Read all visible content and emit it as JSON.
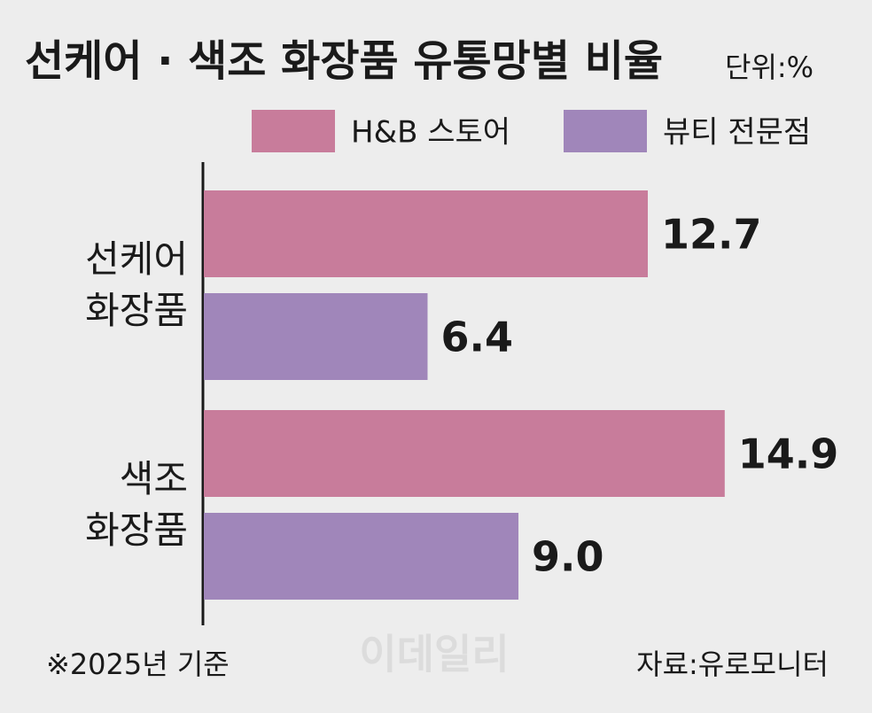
{
  "chart_data": {
    "type": "bar",
    "orientation": "horizontal",
    "title": "선케어 · 색조 화장품 유통망별 비율",
    "subtitle": "단위:%",
    "categories": [
      "선케어\n화장품",
      "색조\n화장품"
    ],
    "series": [
      {
        "name": "H&B 스토어",
        "color": "#c87c9b",
        "values": [
          12.7,
          14.9
        ],
        "value_labels": [
          "12.7",
          "14.9"
        ]
      },
      {
        "name": "뷰티 전문점",
        "color": "#a086ba",
        "values": [
          6.4,
          9.0
        ],
        "value_labels": [
          "6.4",
          "9.0"
        ]
      }
    ],
    "note": "※2025년 기준",
    "source": "자료:유로모니터",
    "watermark": "이데일리"
  }
}
